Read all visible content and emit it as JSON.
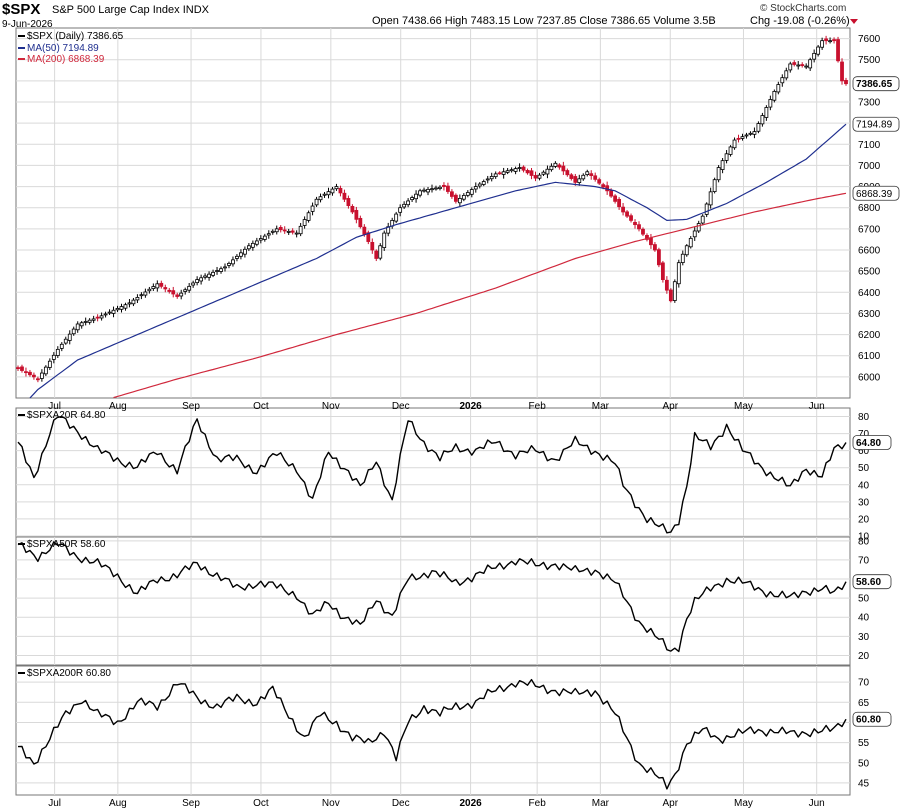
{
  "header": {
    "symbol": "$SPX",
    "name": "S&P 500 Large Cap Index",
    "exchange": "INDX",
    "date": "9-Jun-2026",
    "ohlc": "Open 7438.66  High 7483.15  Low 7237.85  Close 7386.65  Volume 3.5B",
    "change": "Chg -19.08 (-0.26%)",
    "credit": "© StockCharts.com"
  },
  "colors": {
    "up": "#000000",
    "down": "#c8102e",
    "ma50": "#1f2f8f",
    "ma200": "#d0283c",
    "grid": "#d9d9d9"
  },
  "chart_data": [
    {
      "type": "candlestick",
      "legend": [
        {
          "label": "$SPX (Daily) 7386.65",
          "color": "#000000"
        },
        {
          "label": "MA(50) 7194.89",
          "color": "#1f2f8f"
        },
        {
          "label": "MA(200) 6868.39",
          "color": "#d0283c"
        }
      ],
      "x_labels": [
        "Jul",
        "Aug",
        "Sep",
        "Oct",
        "Nov",
        "Dec",
        "2026",
        "Feb",
        "Mar",
        "Apr",
        "May",
        "Jun"
      ],
      "ylim": [
        5900,
        7650
      ],
      "yticks": [
        6000,
        6100,
        6200,
        6300,
        6400,
        6500,
        6600,
        6700,
        6800,
        6900,
        7000,
        7100,
        7200,
        7300,
        7400,
        7500,
        7600
      ],
      "last_labels": [
        {
          "text": "7386.65",
          "value": 7386.65,
          "bold": true
        },
        {
          "text": "7194.89",
          "value": 7194.89,
          "bold": false
        },
        {
          "text": "6868.39",
          "value": 6868.39,
          "bold": false
        }
      ],
      "close_anchors": [
        [
          0,
          6040
        ],
        [
          5,
          5990
        ],
        [
          10,
          6130
        ],
        [
          15,
          6250
        ],
        [
          20,
          6280
        ],
        [
          28,
          6350
        ],
        [
          35,
          6440
        ],
        [
          40,
          6380
        ],
        [
          45,
          6460
        ],
        [
          52,
          6520
        ],
        [
          58,
          6620
        ],
        [
          65,
          6700
        ],
        [
          70,
          6680
        ],
        [
          75,
          6840
        ],
        [
          80,
          6900
        ],
        [
          84,
          6780
        ],
        [
          88,
          6640
        ],
        [
          90,
          6560
        ],
        [
          92,
          6680
        ],
        [
          96,
          6800
        ],
        [
          101,
          6880
        ],
        [
          107,
          6900
        ],
        [
          110,
          6830
        ],
        [
          115,
          6900
        ],
        [
          120,
          6960
        ],
        [
          126,
          6990
        ],
        [
          130,
          6940
        ],
        [
          135,
          7010
        ],
        [
          140,
          6920
        ],
        [
          143,
          6970
        ],
        [
          148,
          6880
        ],
        [
          152,
          6780
        ],
        [
          156,
          6700
        ],
        [
          160,
          6600
        ],
        [
          162,
          6460
        ],
        [
          164,
          6360
        ],
        [
          166,
          6540
        ],
        [
          168,
          6620
        ],
        [
          172,
          6760
        ],
        [
          176,
          6990
        ],
        [
          180,
          7120
        ],
        [
          185,
          7160
        ],
        [
          190,
          7350
        ],
        [
          194,
          7480
        ],
        [
          198,
          7470
        ],
        [
          202,
          7590
        ],
        [
          205,
          7590
        ],
        [
          207,
          7400
        ],
        [
          208,
          7386.65
        ]
      ],
      "ma50_anchors": [
        [
          0,
          5840
        ],
        [
          5,
          5940
        ],
        [
          15,
          6080
        ],
        [
          30,
          6200
        ],
        [
          45,
          6320
        ],
        [
          60,
          6440
        ],
        [
          75,
          6560
        ],
        [
          85,
          6660
        ],
        [
          95,
          6720
        ],
        [
          110,
          6800
        ],
        [
          125,
          6880
        ],
        [
          135,
          6920
        ],
        [
          145,
          6900
        ],
        [
          150,
          6880
        ],
        [
          158,
          6800
        ],
        [
          163,
          6740
        ],
        [
          168,
          6745
        ],
        [
          178,
          6820
        ],
        [
          188,
          6920
        ],
        [
          198,
          7030
        ],
        [
          208,
          7194.89
        ]
      ],
      "ma200_anchors": [
        [
          0,
          5700
        ],
        [
          20,
          5880
        ],
        [
          40,
          5990
        ],
        [
          60,
          6090
        ],
        [
          80,
          6200
        ],
        [
          100,
          6300
        ],
        [
          120,
          6420
        ],
        [
          140,
          6560
        ],
        [
          155,
          6640
        ],
        [
          170,
          6710
        ],
        [
          185,
          6780
        ],
        [
          200,
          6840
        ],
        [
          208,
          6868.39
        ]
      ]
    },
    {
      "type": "line",
      "label": "$SPXA20R 64.80",
      "ylim": [
        10,
        85
      ],
      "yticks": [
        10,
        20,
        30,
        40,
        50,
        60,
        70,
        80
      ],
      "last_label": "64.80",
      "values_anchors": [
        [
          0,
          65
        ],
        [
          4,
          45
        ],
        [
          8,
          70
        ],
        [
          10,
          80
        ],
        [
          15,
          72
        ],
        [
          20,
          60
        ],
        [
          25,
          55
        ],
        [
          30,
          50
        ],
        [
          35,
          60
        ],
        [
          40,
          48
        ],
        [
          45,
          78
        ],
        [
          50,
          55
        ],
        [
          55,
          55
        ],
        [
          60,
          48
        ],
        [
          65,
          58
        ],
        [
          70,
          50
        ],
        [
          74,
          30
        ],
        [
          78,
          60
        ],
        [
          82,
          50
        ],
        [
          86,
          38
        ],
        [
          90,
          55
        ],
        [
          94,
          30
        ],
        [
          96,
          55
        ],
        [
          98,
          78
        ],
        [
          102,
          65
        ],
        [
          106,
          55
        ],
        [
          110,
          62
        ],
        [
          115,
          60
        ],
        [
          120,
          65
        ],
        [
          125,
          58
        ],
        [
          130,
          60
        ],
        [
          135,
          55
        ],
        [
          140,
          65
        ],
        [
          145,
          60
        ],
        [
          150,
          52
        ],
        [
          152,
          40
        ],
        [
          155,
          30
        ],
        [
          158,
          20
        ],
        [
          161,
          15
        ],
        [
          164,
          12
        ],
        [
          166,
          20
        ],
        [
          168,
          40
        ],
        [
          170,
          68
        ],
        [
          174,
          62
        ],
        [
          178,
          75
        ],
        [
          182,
          60
        ],
        [
          186,
          52
        ],
        [
          190,
          45
        ],
        [
          194,
          38
        ],
        [
          198,
          50
        ],
        [
          202,
          45
        ],
        [
          205,
          60
        ],
        [
          208,
          64.8
        ]
      ]
    },
    {
      "type": "line",
      "label": "$SPXA50R 58.60",
      "ylim": [
        15,
        82
      ],
      "yticks": [
        20,
        30,
        40,
        50,
        60,
        70,
        80
      ],
      "last_label": "58.60",
      "values_anchors": [
        [
          0,
          78
        ],
        [
          5,
          72
        ],
        [
          10,
          78
        ],
        [
          15,
          72
        ],
        [
          20,
          68
        ],
        [
          25,
          62
        ],
        [
          30,
          52
        ],
        [
          35,
          60
        ],
        [
          40,
          62
        ],
        [
          45,
          68
        ],
        [
          50,
          62
        ],
        [
          55,
          55
        ],
        [
          60,
          58
        ],
        [
          65,
          56
        ],
        [
          70,
          52
        ],
        [
          74,
          40
        ],
        [
          78,
          48
        ],
        [
          82,
          40
        ],
        [
          86,
          35
        ],
        [
          90,
          50
        ],
        [
          94,
          40
        ],
        [
          98,
          60
        ],
        [
          104,
          64
        ],
        [
          110,
          58
        ],
        [
          115,
          62
        ],
        [
          120,
          66
        ],
        [
          125,
          70
        ],
        [
          130,
          67
        ],
        [
          135,
          68
        ],
        [
          140,
          64
        ],
        [
          145,
          65
        ],
        [
          150,
          58
        ],
        [
          153,
          48
        ],
        [
          156,
          38
        ],
        [
          160,
          30
        ],
        [
          164,
          22
        ],
        [
          166,
          25
        ],
        [
          168,
          40
        ],
        [
          170,
          48
        ],
        [
          174,
          55
        ],
        [
          178,
          60
        ],
        [
          182,
          58
        ],
        [
          186,
          55
        ],
        [
          190,
          52
        ],
        [
          194,
          50
        ],
        [
          198,
          54
        ],
        [
          202,
          55
        ],
        [
          205,
          52
        ],
        [
          208,
          58.6
        ]
      ]
    },
    {
      "type": "line",
      "label": "$SPXA200R 60.80",
      "ylim": [
        42,
        74
      ],
      "yticks": [
        45,
        50,
        55,
        60,
        65,
        70
      ],
      "last_label": "60.80",
      "values_anchors": [
        [
          0,
          54
        ],
        [
          4,
          50
        ],
        [
          8,
          56
        ],
        [
          12,
          62
        ],
        [
          16,
          66
        ],
        [
          20,
          62
        ],
        [
          25,
          60
        ],
        [
          30,
          65
        ],
        [
          35,
          64
        ],
        [
          40,
          70
        ],
        [
          45,
          66
        ],
        [
          50,
          64
        ],
        [
          55,
          66
        ],
        [
          60,
          65
        ],
        [
          64,
          68
        ],
        [
          68,
          62
        ],
        [
          72,
          56
        ],
        [
          76,
          62
        ],
        [
          80,
          60
        ],
        [
          84,
          56
        ],
        [
          88,
          55
        ],
        [
          92,
          58
        ],
        [
          95,
          51
        ],
        [
          98,
          60
        ],
        [
          102,
          64
        ],
        [
          106,
          62
        ],
        [
          110,
          64
        ],
        [
          115,
          65
        ],
        [
          120,
          68
        ],
        [
          125,
          70
        ],
        [
          130,
          69
        ],
        [
          135,
          68
        ],
        [
          140,
          67
        ],
        [
          145,
          68
        ],
        [
          150,
          62
        ],
        [
          153,
          56
        ],
        [
          156,
          50
        ],
        [
          160,
          47
        ],
        [
          163,
          44
        ],
        [
          165,
          47
        ],
        [
          168,
          55
        ],
        [
          172,
          58
        ],
        [
          176,
          56
        ],
        [
          180,
          57
        ],
        [
          185,
          58
        ],
        [
          190,
          58
        ],
        [
          195,
          57
        ],
        [
          200,
          58
        ],
        [
          205,
          58
        ],
        [
          208,
          60.8
        ]
      ]
    }
  ]
}
